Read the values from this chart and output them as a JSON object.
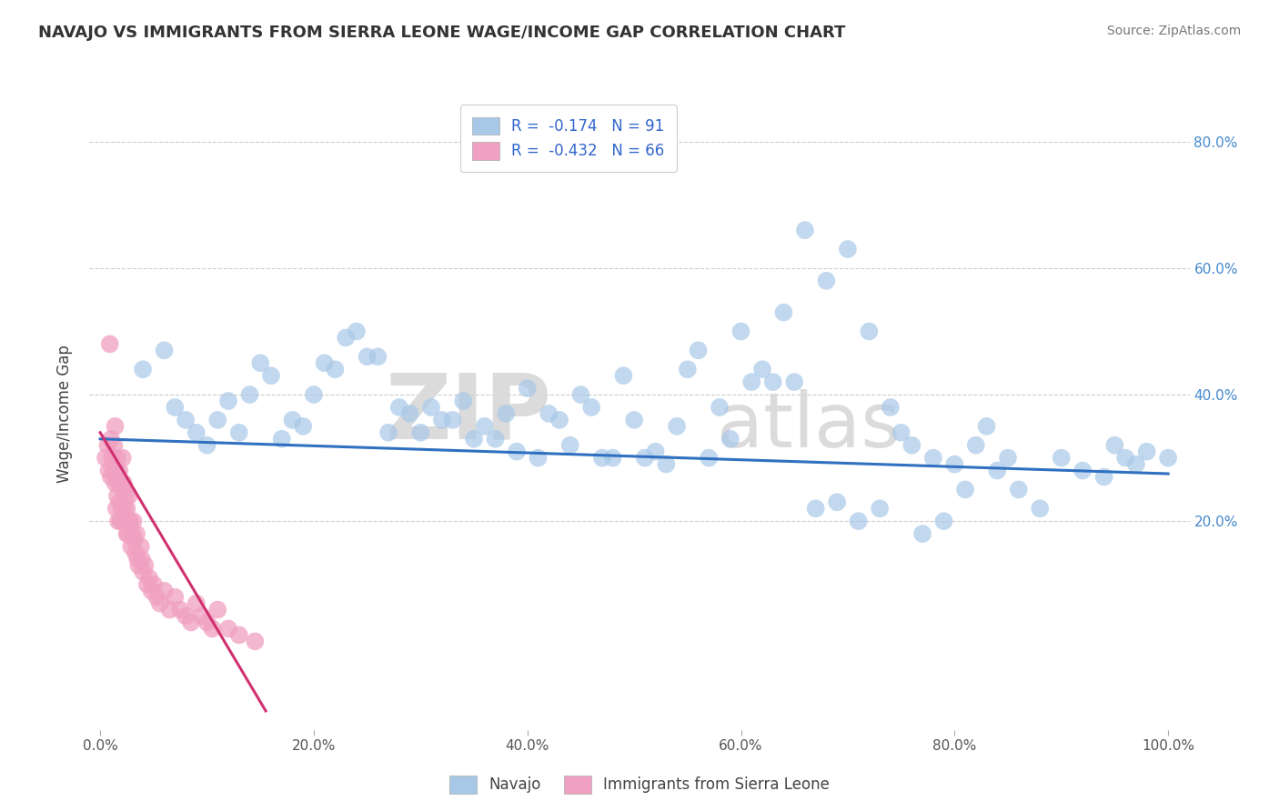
{
  "title": "NAVAJO VS IMMIGRANTS FROM SIERRA LEONE WAGE/INCOME GAP CORRELATION CHART",
  "source": "Source: ZipAtlas.com",
  "ylabel": "Wage/Income Gap",
  "xlim": [
    -0.01,
    1.02
  ],
  "ylim": [
    -0.13,
    0.87
  ],
  "x_tick_labels": [
    "0.0%",
    "20.0%",
    "40.0%",
    "60.0%",
    "80.0%",
    "100.0%"
  ],
  "x_tick_vals": [
    0.0,
    0.2,
    0.4,
    0.6,
    0.8,
    1.0
  ],
  "y_tick_labels": [
    "20.0%",
    "40.0%",
    "60.0%",
    "80.0%"
  ],
  "y_tick_vals": [
    0.2,
    0.4,
    0.6,
    0.8
  ],
  "navajo_R": -0.174,
  "navajo_N": 91,
  "sierra_leone_R": -0.432,
  "sierra_leone_N": 66,
  "navajo_color": "#a8c8e8",
  "sierra_leone_color": "#f0a0c0",
  "navajo_line_color": "#3070c0",
  "sierra_leone_line_color": "#d03070",
  "watermark_zip": "ZIP",
  "watermark_atlas": "atlas",
  "background_color": "#ffffff",
  "navajo_trend_x0": 0.0,
  "navajo_trend_y0": 0.33,
  "navajo_trend_x1": 1.0,
  "navajo_trend_y1": 0.275,
  "sierra_trend_x0": 0.0,
  "sierra_trend_y0": 0.34,
  "sierra_trend_x1": 0.155,
  "sierra_trend_y1": -0.1,
  "navajo_pts_x": [
    0.04,
    0.06,
    0.07,
    0.08,
    0.09,
    0.1,
    0.11,
    0.12,
    0.13,
    0.14,
    0.16,
    0.17,
    0.18,
    0.2,
    0.22,
    0.24,
    0.26,
    0.28,
    0.3,
    0.32,
    0.34,
    0.36,
    0.37,
    0.38,
    0.4,
    0.42,
    0.44,
    0.46,
    0.48,
    0.49,
    0.5,
    0.52,
    0.54,
    0.55,
    0.56,
    0.58,
    0.6,
    0.62,
    0.63,
    0.64,
    0.65,
    0.66,
    0.68,
    0.7,
    0.72,
    0.74,
    0.75,
    0.76,
    0.78,
    0.8,
    0.82,
    0.83,
    0.84,
    0.85,
    0.86,
    0.88,
    0.9,
    0.92,
    0.94,
    0.95,
    0.96,
    0.97,
    0.98,
    1.0,
    0.15,
    0.19,
    0.21,
    0.23,
    0.25,
    0.27,
    0.29,
    0.31,
    0.33,
    0.35,
    0.39,
    0.41,
    0.43,
    0.45,
    0.47,
    0.51,
    0.53,
    0.57,
    0.59,
    0.61,
    0.67,
    0.69,
    0.71,
    0.73,
    0.77,
    0.79,
    0.81
  ],
  "navajo_pts_y": [
    0.44,
    0.47,
    0.38,
    0.36,
    0.34,
    0.32,
    0.36,
    0.39,
    0.34,
    0.4,
    0.43,
    0.33,
    0.36,
    0.4,
    0.44,
    0.5,
    0.46,
    0.38,
    0.34,
    0.36,
    0.39,
    0.35,
    0.33,
    0.37,
    0.41,
    0.37,
    0.32,
    0.38,
    0.3,
    0.43,
    0.36,
    0.31,
    0.35,
    0.44,
    0.47,
    0.38,
    0.5,
    0.44,
    0.42,
    0.53,
    0.42,
    0.66,
    0.58,
    0.63,
    0.5,
    0.38,
    0.34,
    0.32,
    0.3,
    0.29,
    0.32,
    0.35,
    0.28,
    0.3,
    0.25,
    0.22,
    0.3,
    0.28,
    0.27,
    0.32,
    0.3,
    0.29,
    0.31,
    0.3,
    0.45,
    0.35,
    0.45,
    0.49,
    0.46,
    0.34,
    0.37,
    0.38,
    0.36,
    0.33,
    0.31,
    0.3,
    0.36,
    0.4,
    0.3,
    0.3,
    0.29,
    0.3,
    0.33,
    0.42,
    0.22,
    0.23,
    0.2,
    0.22,
    0.18,
    0.2,
    0.25
  ],
  "sierra_pts_x": [
    0.005,
    0.007,
    0.008,
    0.009,
    0.01,
    0.01,
    0.011,
    0.012,
    0.013,
    0.014,
    0.014,
    0.015,
    0.015,
    0.016,
    0.016,
    0.017,
    0.017,
    0.018,
    0.018,
    0.019,
    0.019,
    0.02,
    0.021,
    0.021,
    0.022,
    0.022,
    0.023,
    0.024,
    0.025,
    0.025,
    0.026,
    0.027,
    0.027,
    0.028,
    0.029,
    0.03,
    0.031,
    0.032,
    0.033,
    0.034,
    0.035,
    0.036,
    0.038,
    0.039,
    0.04,
    0.042,
    0.044,
    0.046,
    0.048,
    0.05,
    0.053,
    0.056,
    0.06,
    0.065,
    0.07,
    0.075,
    0.08,
    0.085,
    0.09,
    0.095,
    0.1,
    0.105,
    0.11,
    0.12,
    0.13,
    0.145
  ],
  "sierra_pts_y": [
    0.3,
    0.32,
    0.28,
    0.48,
    0.33,
    0.27,
    0.3,
    0.28,
    0.32,
    0.26,
    0.35,
    0.28,
    0.22,
    0.3,
    0.24,
    0.26,
    0.2,
    0.28,
    0.23,
    0.26,
    0.2,
    0.22,
    0.25,
    0.3,
    0.26,
    0.2,
    0.22,
    0.24,
    0.18,
    0.22,
    0.18,
    0.2,
    0.24,
    0.2,
    0.16,
    0.18,
    0.2,
    0.17,
    0.15,
    0.18,
    0.14,
    0.13,
    0.16,
    0.14,
    0.12,
    0.13,
    0.1,
    0.11,
    0.09,
    0.1,
    0.08,
    0.07,
    0.09,
    0.06,
    0.08,
    0.06,
    0.05,
    0.04,
    0.07,
    0.05,
    0.04,
    0.03,
    0.06,
    0.03,
    0.02,
    0.01
  ]
}
